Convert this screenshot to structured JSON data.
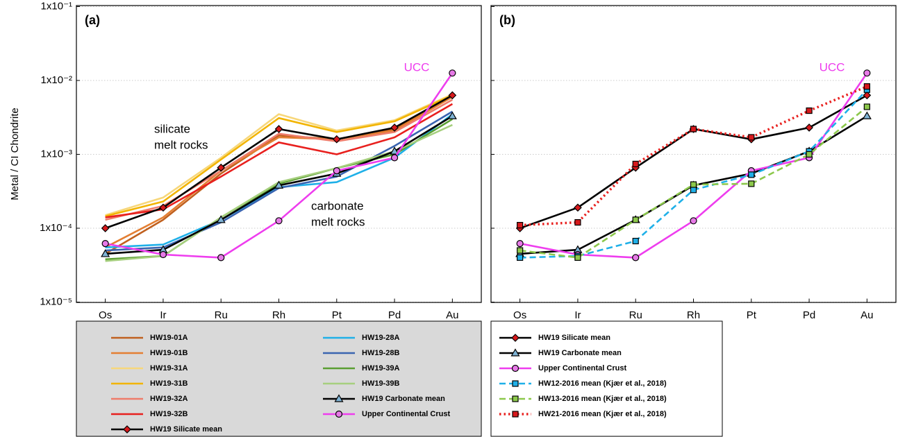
{
  "chart_data": [
    {
      "type": "line",
      "log_y": true,
      "panel_label": "(a)",
      "y_label": "Metal / CI Chondrite",
      "categories": [
        "Os",
        "Ir",
        "Ru",
        "Rh",
        "Pt",
        "Pd",
        "Au"
      ],
      "ylim": [
        1e-05,
        0.1
      ],
      "yticks": [
        {
          "value": 1e-05,
          "label": "1x10⁻⁵"
        },
        {
          "value": 0.0001,
          "label": "1x10⁻⁴"
        },
        {
          "value": 0.001,
          "label": "1x10⁻³"
        },
        {
          "value": 0.01,
          "label": "1x10⁻²"
        },
        {
          "value": 0.1,
          "label": "1x10⁻¹"
        }
      ],
      "grid": true,
      "legend": {
        "position": "below",
        "background": "#d9d9d9"
      },
      "annotations": [
        {
          "text": [
            "silicate",
            "melt rocks"
          ],
          "color": "#000000"
        },
        {
          "text": [
            "carbonate",
            "melt rocks"
          ],
          "color": "#000000"
        },
        {
          "text": [
            "UCC"
          ],
          "color": "#ee3dee"
        }
      ],
      "series": [
        {
          "name": "HW19-01A",
          "color": "#c0601e",
          "values": [
            4.5e-05,
            0.00013,
            0.00055,
            0.0018,
            0.0016,
            0.0022,
            0.006
          ]
        },
        {
          "name": "HW19-01B",
          "color": "#e47f33",
          "values": [
            5.5e-05,
            0.00014,
            0.0006,
            0.0017,
            0.0016,
            0.0021,
            0.006
          ]
        },
        {
          "name": "HW19-31A",
          "color": "#f7d77a",
          "values": [
            0.00015,
            0.00026,
            0.0009,
            0.0035,
            0.0021,
            0.0029,
            0.0065
          ]
        },
        {
          "name": "HW19-31B",
          "color": "#f2b400",
          "values": [
            0.000145,
            0.00023,
            0.00085,
            0.0031,
            0.002,
            0.0028,
            0.0063
          ]
        },
        {
          "name": "HW19-32A",
          "color": "#ef7c6a",
          "values": [
            0.00013,
            0.0002,
            0.0006,
            0.0019,
            0.0015,
            0.002,
            0.0055
          ]
        },
        {
          "name": "HW19-32B",
          "color": "#e8201e",
          "values": [
            0.00014,
            0.00018,
            0.0005,
            0.00145,
            0.001,
            0.0017,
            0.0048
          ]
        },
        {
          "name": "HW19 Silicate mean",
          "color": "#000000",
          "marker": "diamond",
          "marker_color": "#d7191c",
          "values": [
            0.0001,
            0.00019,
            0.00066,
            0.0022,
            0.0016,
            0.0023,
            0.0063
          ]
        },
        {
          "name": "HW19-28A",
          "color": "#1fb0e8",
          "values": [
            5.5e-05,
            6e-05,
            0.00013,
            0.00036,
            0.00042,
            0.0009,
            0.0035
          ]
        },
        {
          "name": "HW19-28B",
          "color": "#3a64b0",
          "values": [
            5e-05,
            5.5e-05,
            0.00012,
            0.00035,
            0.0005,
            0.0013,
            0.0038
          ]
        },
        {
          "name": "HW19-39A",
          "color": "#5a9e32",
          "values": [
            3.8e-05,
            4.2e-05,
            0.00014,
            0.0004,
            0.00065,
            0.001,
            0.003
          ]
        },
        {
          "name": "HW19-39B",
          "color": "#a6cf7e",
          "values": [
            3.6e-05,
            4.2e-05,
            0.00014,
            0.00042,
            0.00065,
            0.0011,
            0.0025
          ]
        },
        {
          "name": "HW19 Carbonate mean",
          "color": "#000000",
          "marker": "triangle",
          "marker_color": "#7fb3d5",
          "values": [
            4.5e-05,
            5.1e-05,
            0.00013,
            0.00038,
            0.00055,
            0.0011,
            0.0033
          ]
        },
        {
          "name": "Upper Continental Crust",
          "color": "#ee3dee",
          "marker": "circle",
          "marker_color": "#e67ae6",
          "values": [
            6.2e-05,
            4.4e-05,
            4e-05,
            0.000126,
            0.0006,
            0.0009,
            0.0126
          ]
        }
      ]
    },
    {
      "type": "line",
      "log_y": true,
      "panel_label": "(b)",
      "categories": [
        "Os",
        "Ir",
        "Ru",
        "Rh",
        "Pt",
        "Pd",
        "Au"
      ],
      "ylim": [
        1e-05,
        0.1
      ],
      "yticks": [
        1e-05,
        0.0001,
        0.001,
        0.01,
        0.1
      ],
      "grid": true,
      "legend": {
        "position": "below",
        "background": "#ffffff"
      },
      "annotations": [
        {
          "text": [
            "UCC"
          ],
          "color": "#ee3dee"
        }
      ],
      "series": [
        {
          "name": "HW19 Silicate mean",
          "color": "#000000",
          "marker": "diamond",
          "marker_color": "#d7191c",
          "values": [
            0.0001,
            0.00019,
            0.00066,
            0.0022,
            0.0016,
            0.0023,
            0.0063
          ]
        },
        {
          "name": "HW19 Carbonate mean",
          "color": "#000000",
          "marker": "triangle",
          "marker_color": "#7fb3d5",
          "values": [
            4.5e-05,
            5.1e-05,
            0.00013,
            0.00038,
            0.00055,
            0.0011,
            0.0033
          ]
        },
        {
          "name": "Upper Continental Crust",
          "color": "#ee3dee",
          "marker": "circle",
          "marker_color": "#e67ae6",
          "values": [
            6.2e-05,
            4.4e-05,
            4e-05,
            0.000126,
            0.0006,
            0.0009,
            0.0126
          ]
        },
        {
          "name": "HW12-2016 mean (Kjær et al., 2018)",
          "color": "#1fb0e8",
          "dash": "dashed",
          "marker": "square",
          "marker_color": "#1fb0e8",
          "values": [
            4e-05,
            4.2e-05,
            6.7e-05,
            0.00033,
            0.00053,
            0.0011,
            0.0075
          ]
        },
        {
          "name": "HW13-2016 mean (Kjær et al., 2018)",
          "color": "#8cc84b",
          "dash": "dashed",
          "marker": "square",
          "marker_color": "#8cc84b",
          "values": [
            5e-05,
            4e-05,
            0.00013,
            0.00039,
            0.0004,
            0.001,
            0.0044
          ]
        },
        {
          "name": "HW21-2016 mean (Kjær et al., 2018)",
          "color": "#e8201e",
          "dash": "dotted",
          "marker": "square",
          "marker_color": "#d7191c",
          "values": [
            0.00011,
            0.00012,
            0.00074,
            0.0022,
            0.0017,
            0.0039,
            0.0083
          ]
        }
      ]
    }
  ]
}
